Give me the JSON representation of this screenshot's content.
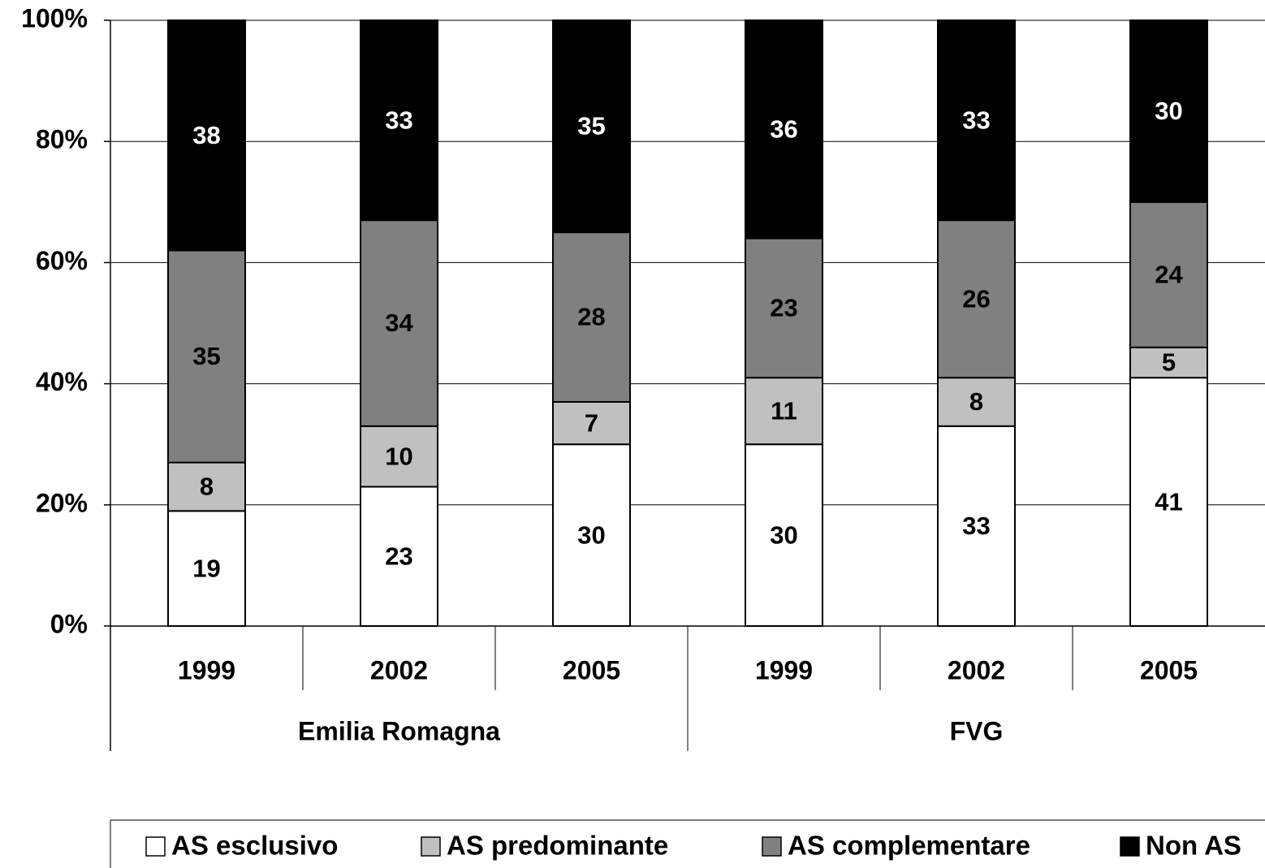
{
  "chart_data": {
    "type": "stacked_bar",
    "categories": [
      "1999",
      "2002",
      "2005",
      "1999",
      "2002",
      "2005"
    ],
    "groups": [
      "Emilia Romagna",
      "FVG"
    ],
    "series": [
      {
        "name": "AS esclusivo",
        "color": "#ffffff",
        "values": [
          19,
          23,
          30,
          30,
          33,
          41
        ]
      },
      {
        "name": "AS predominante",
        "color": "#c0c0c0",
        "values": [
          8,
          10,
          7,
          11,
          8,
          5
        ]
      },
      {
        "name": "AS complementare",
        "color": "#808080",
        "values": [
          35,
          34,
          28,
          23,
          26,
          24
        ]
      },
      {
        "name": "Non AS",
        "color": "#000000",
        "values": [
          38,
          33,
          35,
          36,
          33,
          30
        ]
      }
    ],
    "ylim": [
      0,
      100
    ],
    "yticks": [
      {
        "value": 0,
        "label": "0%"
      },
      {
        "value": 20,
        "label": "20%"
      },
      {
        "value": 40,
        "label": "40%"
      },
      {
        "value": 60,
        "label": "60%"
      },
      {
        "value": 80,
        "label": "80%"
      },
      {
        "value": 100,
        "label": "100%"
      }
    ],
    "grid": true,
    "legend": "bottom"
  }
}
